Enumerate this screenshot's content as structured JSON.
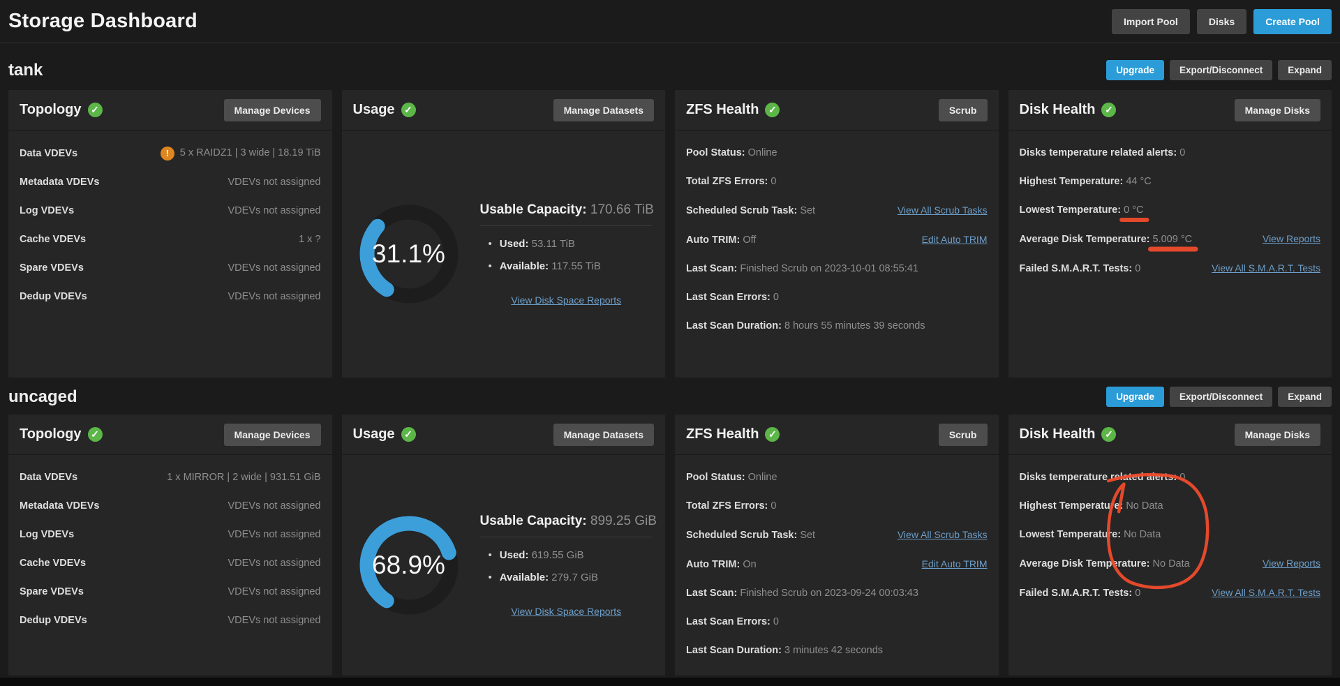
{
  "header": {
    "title": "Storage Dashboard",
    "buttons": [
      "Import Pool",
      "Disks",
      "Create Pool"
    ]
  },
  "colors": {
    "accent_blue": "#2b9cd8",
    "gauge_blue": "#3d9fda",
    "success_green": "#5cb648",
    "warning_orange": "#df861f",
    "link_blue": "#6d9ec9",
    "annotation_red": "#ee4b2c"
  },
  "icons": {
    "card_status": "check-circle-icon",
    "topology_warning": "exclamation-circle-icon"
  },
  "pools": [
    {
      "name": "tank",
      "actions": [
        "Upgrade",
        "Export/Disconnect",
        "Expand"
      ],
      "topology": {
        "title": "Topology",
        "button": "Manage Devices",
        "rows": [
          {
            "label": "Data VDEVs",
            "value": "5 x RAIDZ1 | 3 wide | 18.19 TiB",
            "warning": true
          },
          {
            "label": "Metadata VDEVs",
            "value": "VDEVs not assigned"
          },
          {
            "label": "Log VDEVs",
            "value": "VDEVs not assigned"
          },
          {
            "label": "Cache VDEVs",
            "value": "1 x ?"
          },
          {
            "label": "Spare VDEVs",
            "value": "VDEVs not assigned"
          },
          {
            "label": "Dedup VDEVs",
            "value": "VDEVs not assigned"
          }
        ]
      },
      "usage": {
        "title": "Usage",
        "button": "Manage Datasets",
        "percent": 31.1,
        "percent_label": "31.1%",
        "capacity_label": "Usable Capacity:",
        "capacity": "170.66 TiB",
        "items": [
          {
            "label": "Used:",
            "value": "53.11 TiB"
          },
          {
            "label": "Available:",
            "value": "117.55 TiB"
          }
        ],
        "link": "View Disk Space Reports"
      },
      "zfs": {
        "title": "ZFS Health",
        "button": "Scrub",
        "rows": [
          {
            "label": "Pool Status:",
            "value": "Online"
          },
          {
            "label": "Total ZFS Errors:",
            "value": "0"
          },
          {
            "label": "Scheduled Scrub Task:",
            "value": "Set",
            "link": "View All Scrub Tasks"
          },
          {
            "label": "Auto TRIM:",
            "value": "Off",
            "link": "Edit Auto TRIM"
          },
          {
            "label": "Last Scan:",
            "value": "Finished Scrub on 2023-10-01 08:55:41"
          },
          {
            "label": "Last Scan Errors:",
            "value": "0"
          },
          {
            "label": "Last Scan Duration:",
            "value": "8 hours 55 minutes 39 seconds"
          }
        ]
      },
      "disk": {
        "title": "Disk Health",
        "button": "Manage Disks",
        "rows": [
          {
            "label": "Disks temperature related alerts:",
            "value": "0"
          },
          {
            "label": "Highest Temperature:",
            "value": "44 °C"
          },
          {
            "label": "Lowest Temperature:",
            "value": "0 °C"
          },
          {
            "label": "Average Disk Temperature:",
            "value": "5.009 °C",
            "link": "View Reports"
          },
          {
            "label": "Failed S.M.A.R.T. Tests:",
            "value": "0",
            "link": "View All S.M.A.R.T. Tests"
          }
        ]
      }
    },
    {
      "name": "uncaged",
      "actions": [
        "Upgrade",
        "Export/Disconnect",
        "Expand"
      ],
      "topology": {
        "title": "Topology",
        "button": "Manage Devices",
        "rows": [
          {
            "label": "Data VDEVs",
            "value": "1 x MIRROR | 2 wide | 931.51 GiB"
          },
          {
            "label": "Metadata VDEVs",
            "value": "VDEVs not assigned"
          },
          {
            "label": "Log VDEVs",
            "value": "VDEVs not assigned"
          },
          {
            "label": "Cache VDEVs",
            "value": "VDEVs not assigned"
          },
          {
            "label": "Spare VDEVs",
            "value": "VDEVs not assigned"
          },
          {
            "label": "Dedup VDEVs",
            "value": "VDEVs not assigned"
          }
        ]
      },
      "usage": {
        "title": "Usage",
        "button": "Manage Datasets",
        "percent": 68.9,
        "percent_label": "68.9%",
        "capacity_label": "Usable Capacity:",
        "capacity": "899.25 GiB",
        "items": [
          {
            "label": "Used:",
            "value": "619.55 GiB"
          },
          {
            "label": "Available:",
            "value": "279.7 GiB"
          }
        ],
        "link": "View Disk Space Reports"
      },
      "zfs": {
        "title": "ZFS Health",
        "button": "Scrub",
        "rows": [
          {
            "label": "Pool Status:",
            "value": "Online"
          },
          {
            "label": "Total ZFS Errors:",
            "value": "0"
          },
          {
            "label": "Scheduled Scrub Task:",
            "value": "Set",
            "link": "View All Scrub Tasks"
          },
          {
            "label": "Auto TRIM:",
            "value": "On",
            "link": "Edit Auto TRIM"
          },
          {
            "label": "Last Scan:",
            "value": "Finished Scrub on 2023-09-24 00:03:43"
          },
          {
            "label": "Last Scan Errors:",
            "value": "0"
          },
          {
            "label": "Last Scan Duration:",
            "value": "3 minutes 42 seconds"
          }
        ]
      },
      "disk": {
        "title": "Disk Health",
        "button": "Manage Disks",
        "rows": [
          {
            "label": "Disks temperature related alerts:",
            "value": "0"
          },
          {
            "label": "Highest Temperature:",
            "value": "No Data"
          },
          {
            "label": "Lowest Temperature:",
            "value": "No Data"
          },
          {
            "label": "Average Disk Temperature:",
            "value": "No Data",
            "link": "View Reports"
          },
          {
            "label": "Failed S.M.A.R.T. Tests:",
            "value": "0",
            "link": "View All S.M.A.R.T. Tests"
          }
        ]
      }
    }
  ],
  "annotations": {
    "color": "#ee4b2c",
    "marks": [
      {
        "type": "underline",
        "target": "pools.0.disk.rows.2.value",
        "thickness": 6
      },
      {
        "type": "underline",
        "target": "pools.0.disk.rows.3.value",
        "thickness": 7
      },
      {
        "type": "circle",
        "targets": [
          "pools.1.disk.rows.1.value",
          "pools.1.disk.rows.2.value",
          "pools.1.disk.rows.3.value"
        ],
        "pad_x": 24,
        "pad_y": 28
      }
    ]
  }
}
